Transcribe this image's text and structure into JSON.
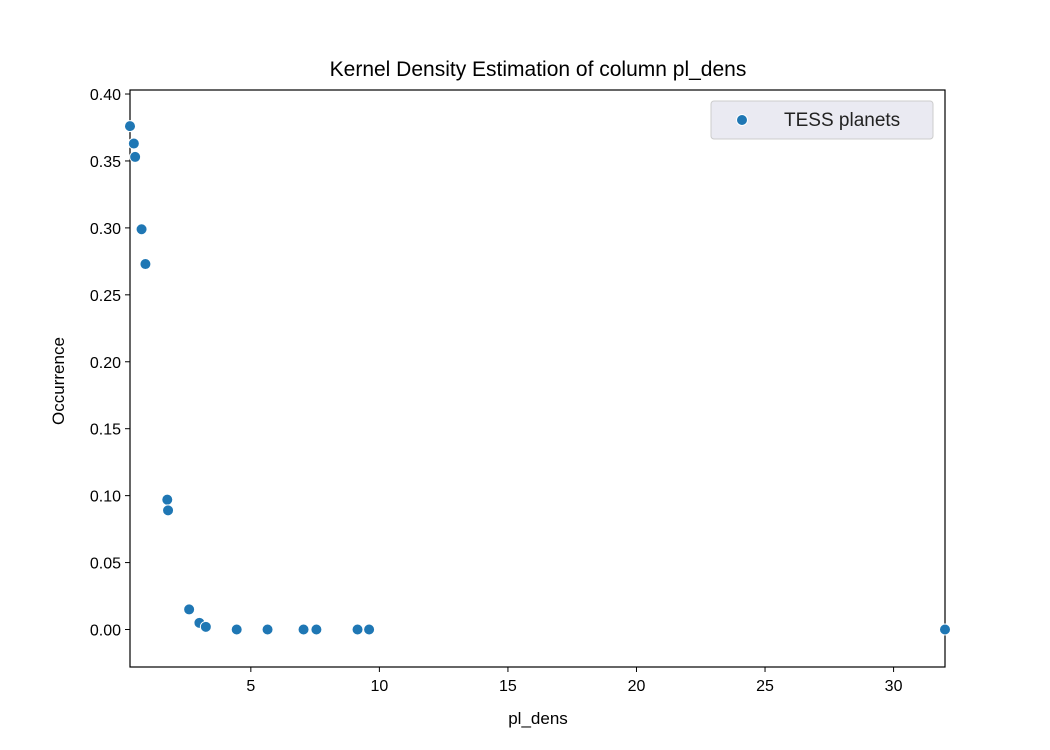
{
  "chart_data": {
    "type": "scatter",
    "title": "Kernel Density Estimation of column pl_dens",
    "xlabel": "pl_dens",
    "ylabel": "Occurrence",
    "xlim": [
      0.3,
      32.0
    ],
    "ylim": [
      -0.028,
      0.403
    ],
    "xticks": [
      5,
      10,
      15,
      20,
      25,
      30
    ],
    "yticks": [
      0.0,
      0.05,
      0.1,
      0.15,
      0.2,
      0.25,
      0.3,
      0.35,
      0.4
    ],
    "ytick_labels": [
      "0.00",
      "0.05",
      "0.10",
      "0.15",
      "0.20",
      "0.25",
      "0.30",
      "0.35",
      "0.40"
    ],
    "legend_position": "upper right",
    "grid": false,
    "series": [
      {
        "name": "TESS planets",
        "color": "#1f77b4",
        "points": [
          {
            "x": 0.3,
            "y": 0.376
          },
          {
            "x": 0.45,
            "y": 0.363
          },
          {
            "x": 0.5,
            "y": 0.353
          },
          {
            "x": 0.75,
            "y": 0.299
          },
          {
            "x": 0.9,
            "y": 0.273
          },
          {
            "x": 1.75,
            "y": 0.097
          },
          {
            "x": 1.78,
            "y": 0.089
          },
          {
            "x": 2.6,
            "y": 0.015
          },
          {
            "x": 3.0,
            "y": 0.005
          },
          {
            "x": 3.25,
            "y": 0.002
          },
          {
            "x": 4.45,
            "y": 0.0
          },
          {
            "x": 5.65,
            "y": 0.0
          },
          {
            "x": 7.05,
            "y": 0.0
          },
          {
            "x": 7.55,
            "y": 0.0
          },
          {
            "x": 9.15,
            "y": 0.0
          },
          {
            "x": 9.6,
            "y": 0.0
          },
          {
            "x": 32.0,
            "y": 0.0
          }
        ]
      }
    ]
  }
}
